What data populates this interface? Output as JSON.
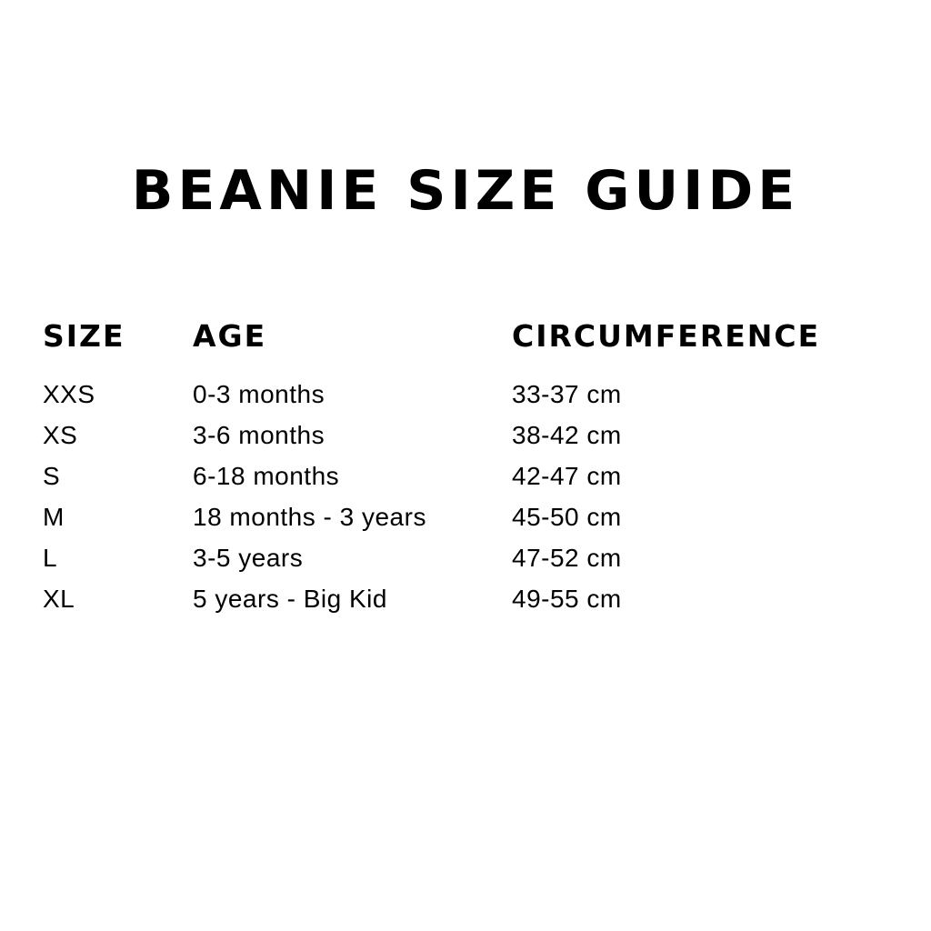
{
  "title": "BEANIE SIZE GUIDE",
  "table": {
    "headers": [
      "SIZE",
      "AGE",
      "CIRCUMFERENCE"
    ],
    "rows": [
      [
        "XXS",
        "0-3 months",
        "33-37 cm"
      ],
      [
        "XS",
        "3-6 months",
        "38-42 cm"
      ],
      [
        "S",
        "6-18 months",
        "42-47 cm"
      ],
      [
        "M",
        "18 months - 3 years",
        "45-50 cm"
      ],
      [
        "L",
        "3-5 years",
        "47-52 cm"
      ],
      [
        "XL",
        "5 years - Big Kid",
        "49-55 cm"
      ]
    ]
  }
}
